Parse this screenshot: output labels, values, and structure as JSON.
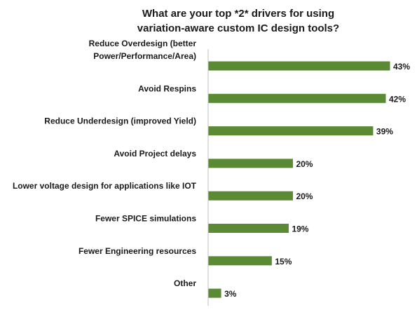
{
  "chart_data": {
    "type": "bar",
    "orientation": "horizontal",
    "title_lines": [
      "What are your top *2* drivers for using",
      "variation-aware custom IC design tools?"
    ],
    "categories": [
      [
        "Reduce Overdesign  (better",
        "Power/Performance/Area)"
      ],
      [
        "Avoid Respins"
      ],
      [
        "Reduce Underdesign (improved Yield)"
      ],
      [
        "Avoid Project delays"
      ],
      [
        "Lower voltage design for applications like IOT"
      ],
      [
        "Fewer SPICE simulations"
      ],
      [
        "Fewer Engineering resources"
      ],
      [
        "Other"
      ]
    ],
    "values": [
      43,
      42,
      39,
      20,
      20,
      19,
      15,
      3
    ],
    "value_labels": [
      "43%",
      "42%",
      "39%",
      "20%",
      "20%",
      "19%",
      "15%",
      "3%"
    ],
    "xlim": [
      0,
      43
    ],
    "bar_color": "#5b8a35",
    "axis_color": "#bfbfbf",
    "grid": false,
    "legend": "none"
  }
}
